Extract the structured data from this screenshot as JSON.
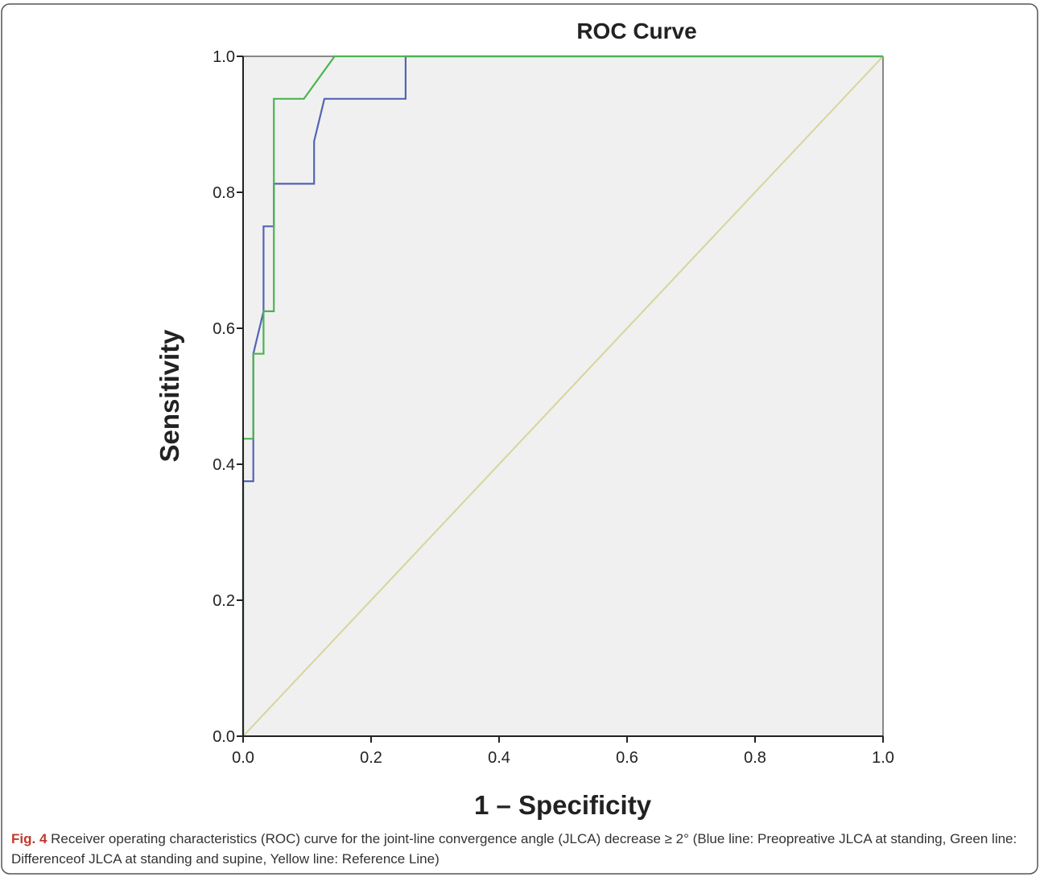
{
  "chart_data": {
    "type": "line",
    "title": "ROC Curve",
    "xlabel": "1 – Specificity",
    "ylabel": "Sensitivity",
    "xlim": [
      0,
      1
    ],
    "ylim": [
      0,
      1
    ],
    "xticks": [
      "0.0",
      "0.2",
      "0.4",
      "0.6",
      "0.8",
      "1.0"
    ],
    "yticks": [
      "0.0",
      "0.2",
      "0.4",
      "0.6",
      "0.8",
      "1.0"
    ],
    "grid": false,
    "plot_background": "#f0f0f0",
    "series": [
      {
        "color": "#5464b4",
        "x": [
          0,
          0,
          0.016,
          0.016,
          0.032,
          0.032,
          0.048,
          0.048,
          0.111,
          0.111,
          0.127,
          0.254,
          0.254,
          1.0
        ],
        "y": [
          0,
          0.375,
          0.375,
          0.5625,
          0.625,
          0.75,
          0.75,
          0.8125,
          0.8125,
          0.875,
          0.9375,
          0.9375,
          1.0,
          1.0
        ]
      },
      {
        "color": "#4cb450",
        "x": [
          0,
          0,
          0.016,
          0.016,
          0.032,
          0.032,
          0.048,
          0.048,
          0.095,
          0.143,
          1.0
        ],
        "y": [
          0,
          0.4375,
          0.4375,
          0.5625,
          0.5625,
          0.625,
          0.625,
          0.9375,
          0.9375,
          1.0,
          1.0
        ]
      },
      {
        "color": "#d8d49c",
        "x": [
          0,
          1
        ],
        "y": [
          0,
          1
        ]
      }
    ]
  },
  "caption": {
    "label": "Fig. 4",
    "text": " Receiver operating characteristics (ROC) curve for the joint-line convergence angle (JLCA) decrease ≥ 2° (Blue line: Preopreative JLCA at standing, Green line: Differenceof JLCA at standing and supine, Yellow line: Reference Line)"
  },
  "colors": {
    "frame_border": "#555555",
    "axis": "#222222",
    "top_right_edge": "#888888"
  }
}
